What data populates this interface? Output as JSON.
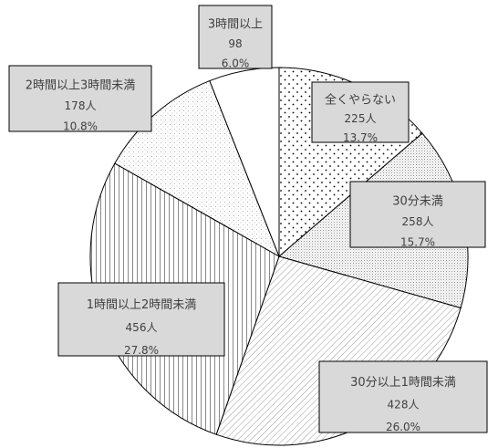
{
  "chart_data": {
    "type": "pie",
    "title": "",
    "start_angle_deg": 0,
    "direction": "clockwise",
    "slices": [
      {
        "label": "全くやらない",
        "count": "225人",
        "percent": "13.7%",
        "value": 13.7,
        "pattern": "dots"
      },
      {
        "label": "30分未満",
        "count": "258人",
        "percent": "15.7%",
        "value": 15.7,
        "pattern": "fine"
      },
      {
        "label": "30分以上1時間未満",
        "count": "428人",
        "percent": "26.0%",
        "value": 26.0,
        "pattern": "diag"
      },
      {
        "label": "1時間以上2時間未満",
        "count": "456人",
        "percent": "27.8%",
        "value": 27.8,
        "pattern": "vert"
      },
      {
        "label": "2時間以上3時間未満",
        "count": "178人",
        "percent": "10.8%",
        "value": 10.8,
        "pattern": "sparse"
      },
      {
        "label": "3時間以上",
        "count": "98",
        "percent": "6.0%",
        "value": 6.0,
        "pattern": "none"
      }
    ],
    "label_box_fill": "#d9d9d9",
    "label_box_stroke": "#000000",
    "slice_stroke": "#000000"
  }
}
